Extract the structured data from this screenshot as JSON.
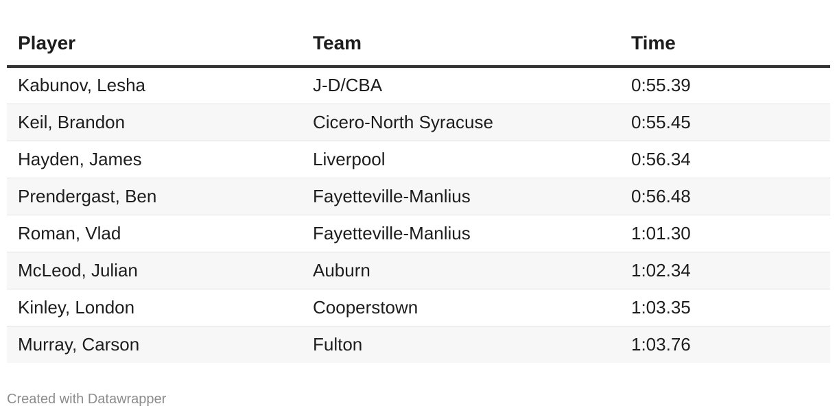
{
  "chart_data": {
    "type": "table",
    "columns": [
      "Player",
      "Team",
      "Time"
    ],
    "rows": [
      [
        "Kabunov, Lesha",
        "J-D/CBA",
        "0:55.39"
      ],
      [
        "Keil, Brandon",
        "Cicero-North Syracuse",
        "0:55.45"
      ],
      [
        "Hayden, James",
        "Liverpool",
        "0:56.34"
      ],
      [
        "Prendergast, Ben",
        "Fayetteville-Manlius",
        "0:56.48"
      ],
      [
        "Roman, Vlad",
        "Fayetteville-Manlius",
        "1:01.30"
      ],
      [
        "McLeod, Julian",
        "Auburn",
        "1:02.34"
      ],
      [
        "Kinley, London",
        "Cooperstown",
        "1:03.35"
      ],
      [
        "Murray, Carson",
        "Fulton",
        "1:03.76"
      ]
    ]
  },
  "footer": {
    "credit": "Created with Datawrapper"
  }
}
